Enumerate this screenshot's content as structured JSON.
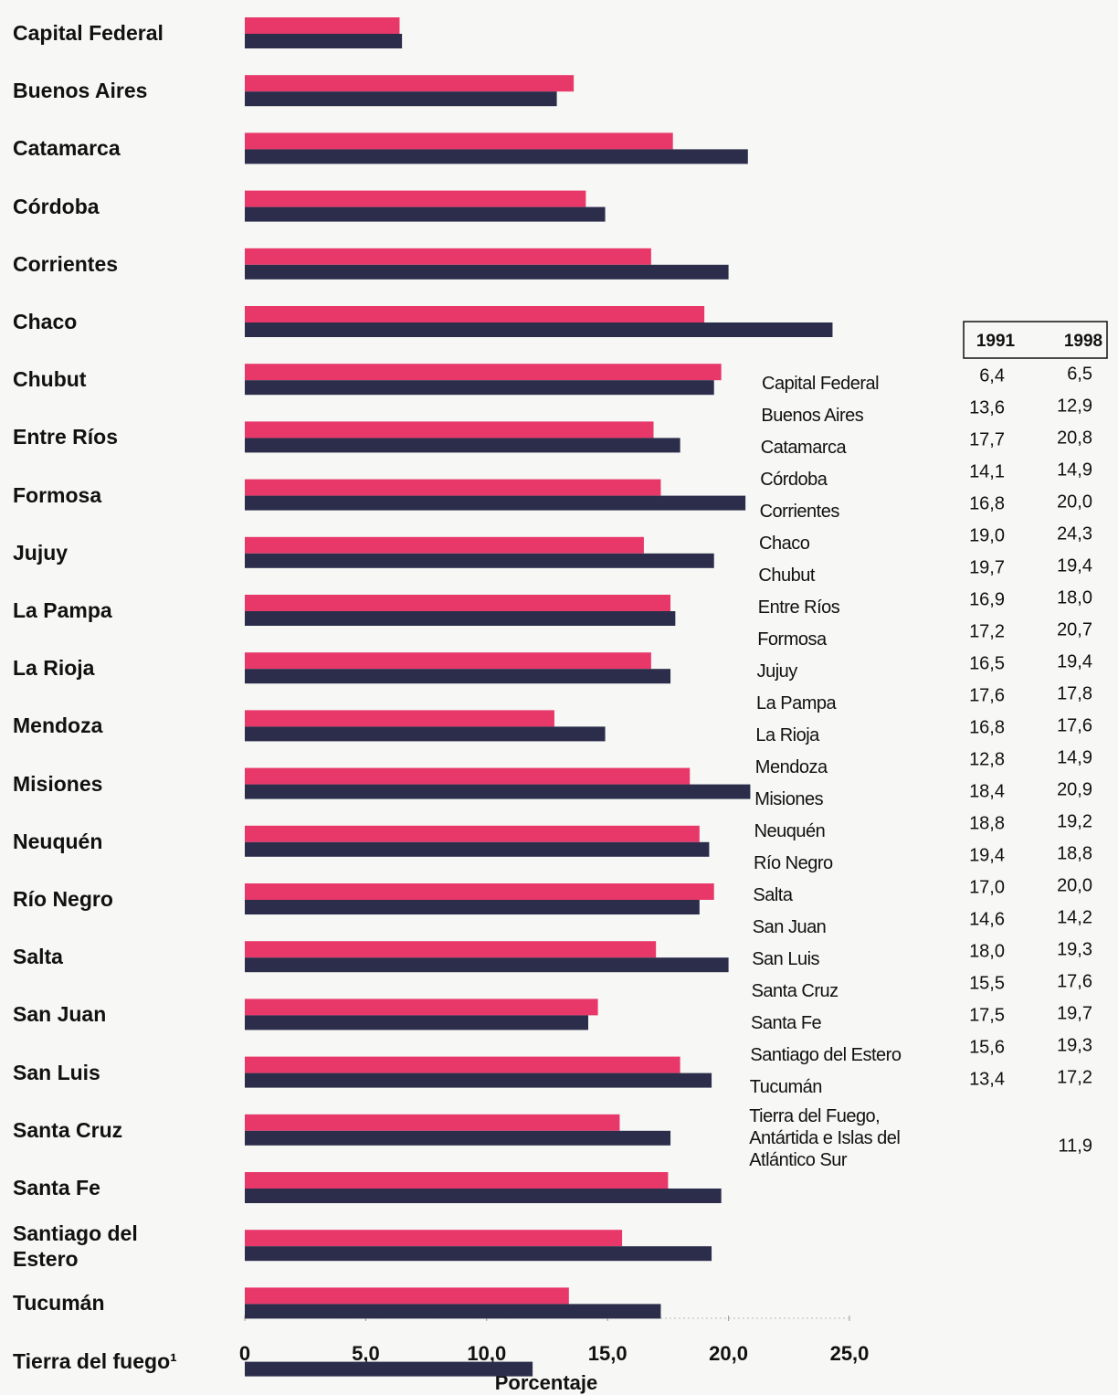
{
  "chart_data": {
    "type": "bar",
    "orientation": "horizontal",
    "categories": [
      "Capital Federal",
      "Buenos Aires",
      "Catamarca",
      "Córdoba",
      "Corrientes",
      "Chaco",
      "Chubut",
      "Entre Ríos",
      "Formosa",
      "Jujuy",
      "La Pampa",
      "La Rioja",
      "Mendoza",
      "Misiones",
      "Neuquén",
      "Río Negro",
      "Salta",
      "San Juan",
      "San Luis",
      "Santa Cruz",
      "Santa Fe",
      "Santiago del Estero",
      "Tucumán",
      "Tierra del fuego¹"
    ],
    "series": [
      {
        "name": "1991",
        "color": "#e8386a",
        "values": [
          6.4,
          13.6,
          17.7,
          14.1,
          16.8,
          19.0,
          19.7,
          16.9,
          17.2,
          16.5,
          17.6,
          16.8,
          12.8,
          18.4,
          18.8,
          19.4,
          17.0,
          14.6,
          18.0,
          15.5,
          17.5,
          15.6,
          13.4,
          null
        ],
        "value_labels": [
          "6,4",
          "13,6",
          "17,7",
          "14,1",
          "16,8",
          "19,0",
          "19,7",
          "16,9",
          "17,2",
          "16,5",
          "17,6",
          "16,8",
          "12,8",
          "18,4",
          "18,8",
          "19,4",
          "17,0",
          "14,6",
          "18,0",
          "15,5",
          "17,5",
          "15,6",
          "13,4",
          null
        ]
      },
      {
        "name": "1998",
        "color": "#2b2d4b",
        "values": [
          6.5,
          12.9,
          20.8,
          14.9,
          20.0,
          24.3,
          19.4,
          18.0,
          20.7,
          19.4,
          17.8,
          17.6,
          14.9,
          20.9,
          19.2,
          18.8,
          20.0,
          14.2,
          19.3,
          17.6,
          19.7,
          19.3,
          17.2,
          11.9
        ],
        "value_labels": [
          "6,5",
          "12,9",
          "20,8",
          "14,9",
          "20,0",
          "24,3",
          "19,4",
          "18,0",
          "20,7",
          "19,4",
          "17,8",
          "17,6",
          "14,9",
          "20,9",
          "19,2",
          "18,8",
          "20,0",
          "14,2",
          "19,3",
          "17,6",
          "19,7",
          "19,3",
          "17,2",
          "11,9"
        ]
      }
    ],
    "xlim": [
      0,
      25
    ],
    "xticks": [
      0,
      {
        "value": 5,
        "label": "5,0"
      },
      {
        "value": 10,
        "label": "10,0"
      },
      {
        "value": 15,
        "label": "15,0"
      },
      {
        "value": 20,
        "label": "20,0"
      },
      {
        "value": 25,
        "label": "25,0"
      }
    ],
    "xlabel": "Porcentaje"
  },
  "table": {
    "rows": [
      "Capital Federal",
      "Buenos Aires",
      "Catamarca",
      "Córdoba",
      "Corrientes",
      "Chaco",
      "Chubut",
      "Entre Ríos",
      "Formosa",
      "Jujuy",
      "La Pampa",
      "La Rioja",
      "Mendoza",
      "Misiones",
      "Neuquén",
      "Río Negro",
      "Salta",
      "San Juan",
      "San Luis",
      "Santa Cruz",
      "Santa Fe",
      "Santiago del Estero",
      "Tucumán",
      "Tierra del Fuego, Antártida e Islas del Atlántico Sur"
    ]
  }
}
